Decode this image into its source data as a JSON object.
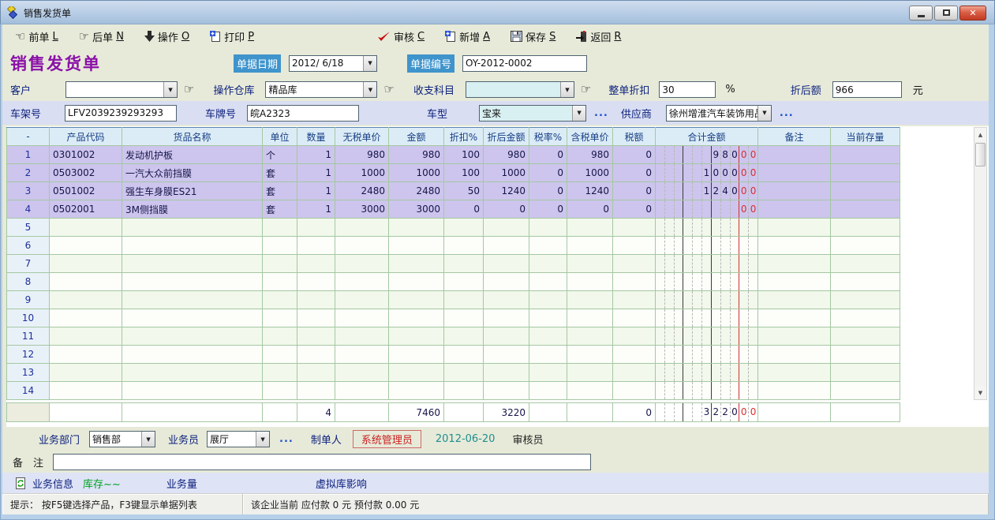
{
  "window": {
    "title": "销售发货单"
  },
  "toolbar": {
    "items": [
      {
        "label": "前单",
        "key": "L",
        "icon": "hand-left-icon"
      },
      {
        "label": "后单",
        "key": "N",
        "icon": "hand-right-icon"
      },
      {
        "label": "操作",
        "key": "O",
        "icon": "down-arrow-icon"
      },
      {
        "label": "打印",
        "key": "P",
        "icon": "print-icon"
      },
      {
        "label": "审核",
        "key": "C",
        "icon": "check-icon"
      },
      {
        "label": "新增",
        "key": "A",
        "icon": "new-doc-icon"
      },
      {
        "label": "保存",
        "key": "S",
        "icon": "save-icon"
      },
      {
        "label": "返回",
        "key": "R",
        "icon": "return-icon"
      }
    ]
  },
  "header": {
    "form_title": "销售发货单",
    "date_label": "单据日期",
    "date_value": "2012/ 6/18",
    "no_label": "单据编号",
    "no_value": "OY-2012-0002"
  },
  "fields": {
    "customer_label": "客户",
    "customer_value": "",
    "warehouse_label": "操作仓库",
    "warehouse_value": "精品库",
    "account_label": "收支科目",
    "account_value": "",
    "discount_label": "整单折扣",
    "discount_value": "30",
    "discount_unit": "%",
    "discounted_label": "折后额",
    "discounted_value": "966",
    "discounted_unit": "元",
    "vin_label": "车架号",
    "vin_value": "LFV2039239293293",
    "plate_label": "车牌号",
    "plate_value": "皖A2323",
    "model_label": "车型",
    "model_value": "宝来",
    "supplier_label": "供应商",
    "supplier_value": "徐州增淮汽车装饰用品",
    "more": "..."
  },
  "table": {
    "columns": [
      "-",
      "产品代码",
      "货品名称",
      "单位",
      "数量",
      "无税单价",
      "金额",
      "折扣%",
      "折后金额",
      "税率%",
      "含税单价",
      "税额",
      "合计金额",
      "备注",
      "当前存量"
    ],
    "rows": [
      {
        "no": "1",
        "code": "0301002",
        "name": "发动机护板",
        "unit": "个",
        "qty": "1",
        "price": "980",
        "amount": "980",
        "disc": "100",
        "disc_amount": "980",
        "tax_rate": "0",
        "tax_price": "980",
        "tax": "0",
        "total_ledger": "98000",
        "note": "",
        "stock": ""
      },
      {
        "no": "2",
        "code": "0503002",
        "name": "一汽大众前挡膜",
        "unit": "套",
        "qty": "1",
        "price": "1000",
        "amount": "1000",
        "disc": "100",
        "disc_amount": "1000",
        "tax_rate": "0",
        "tax_price": "1000",
        "tax": "0",
        "total_ledger": "100000",
        "note": "",
        "stock": ""
      },
      {
        "no": "3",
        "code": "0501002",
        "name": "强生车身膜ES21",
        "unit": "套",
        "qty": "1",
        "price": "2480",
        "amount": "2480",
        "disc": "50",
        "disc_amount": "1240",
        "tax_rate": "0",
        "tax_price": "1240",
        "tax": "0",
        "total_ledger": "124000",
        "note": "",
        "stock": ""
      },
      {
        "no": "4",
        "code": "0502001",
        "name": "3M侧挡膜",
        "unit": "套",
        "qty": "1",
        "price": "3000",
        "amount": "3000",
        "disc": "0",
        "disc_amount": "0",
        "tax_rate": "0",
        "tax_price": "0",
        "tax": "0",
        "total_ledger": "00",
        "note": "",
        "stock": ""
      }
    ],
    "empty_row_numbers": [
      "5",
      "6",
      "7",
      "8",
      "9",
      "10",
      "11",
      "12",
      "13",
      "14"
    ],
    "total": {
      "qty": "4",
      "amount": "7460",
      "disc_amount": "3220",
      "tax": "0",
      "total_ledger": "322000"
    }
  },
  "footer": {
    "dept_label": "业务部门",
    "dept_value": "销售部",
    "clerk_label": "业务员",
    "clerk_value": "展厅",
    "more": "...",
    "maker_label": "制单人",
    "maker_value": "系统管理员",
    "maker_date": "2012-06-20",
    "auditor_label": "审核员",
    "remark_label": "备　注",
    "remark_value": "",
    "info_label": "业务信息",
    "stock_link": "库存~~",
    "volume_label": "业务量",
    "virtual_label": "虚拟库影响"
  },
  "status_bar": {
    "hint": "提示： 按F5键选择产品，F3键显示单据列表",
    "account_info": "该企业当前 应付款 0 元 预付款 0.00 元"
  },
  "colors": {
    "accent_blue": "#3f94cc",
    "form_title_purple": "#8a10a8",
    "selected_row": "#cdc5ed",
    "ledger_red": "#d83030",
    "maker_red": "#cc1f1f",
    "date_teal": "#1e8e8e",
    "grid_green": "#a4c8a2"
  }
}
